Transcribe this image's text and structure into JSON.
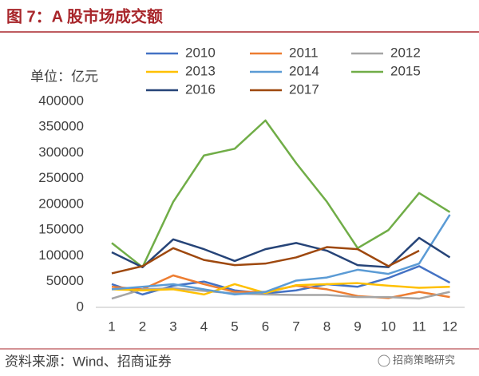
{
  "chart_data": {
    "type": "line",
    "title": "图 7：A 股市场成交额",
    "y_label": "单位：亿元",
    "source": "资料来源：Wind、招商证券",
    "watermark": "招商策略研究",
    "categories": [
      "1",
      "2",
      "3",
      "4",
      "5",
      "6",
      "7",
      "8",
      "9",
      "10",
      "11",
      "12"
    ],
    "ylim": [
      0,
      400000
    ],
    "yticks": [
      0,
      50000,
      100000,
      150000,
      200000,
      250000,
      300000,
      350000,
      400000
    ],
    "series": [
      {
        "name": "2010",
        "color": "#4472c4",
        "values": [
          45000,
          25000,
          42000,
          50000,
          33000,
          27000,
          33000,
          45000,
          40000,
          57000,
          80000,
          48000
        ]
      },
      {
        "name": "2011",
        "color": "#ed7d31",
        "values": [
          40000,
          35000,
          62000,
          45000,
          30000,
          30000,
          42000,
          35000,
          22000,
          18000,
          30000,
          20000
        ]
      },
      {
        "name": "2012",
        "color": "#a5a5a5",
        "values": [
          17000,
          35000,
          37000,
          32000,
          27000,
          25000,
          24000,
          24000,
          20000,
          20000,
          17000,
          30000
        ]
      },
      {
        "name": "2013",
        "color": "#ffc000",
        "values": [
          35000,
          33000,
          35000,
          25000,
          45000,
          28000,
          43000,
          45000,
          47000,
          42000,
          38000,
          40000
        ]
      },
      {
        "name": "2014",
        "color": "#5b9bd5",
        "values": [
          35000,
          40000,
          45000,
          35000,
          25000,
          30000,
          52000,
          58000,
          73000,
          65000,
          85000,
          180000
        ]
      },
      {
        "name": "2015",
        "color": "#70ad47",
        "values": [
          125000,
          78000,
          205000,
          295000,
          308000,
          363000,
          280000,
          205000,
          115000,
          150000,
          222000,
          185000
        ]
      },
      {
        "name": "2016",
        "color": "#264478",
        "values": [
          107000,
          78000,
          132000,
          113000,
          90000,
          113000,
          125000,
          110000,
          82000,
          78000,
          135000,
          97000
        ]
      },
      {
        "name": "2017",
        "color": "#9e480e",
        "values": [
          66000,
          80000,
          115000,
          92000,
          82000,
          85000,
          97000,
          117000,
          113000,
          80000,
          110000,
          null
        ]
      }
    ]
  }
}
